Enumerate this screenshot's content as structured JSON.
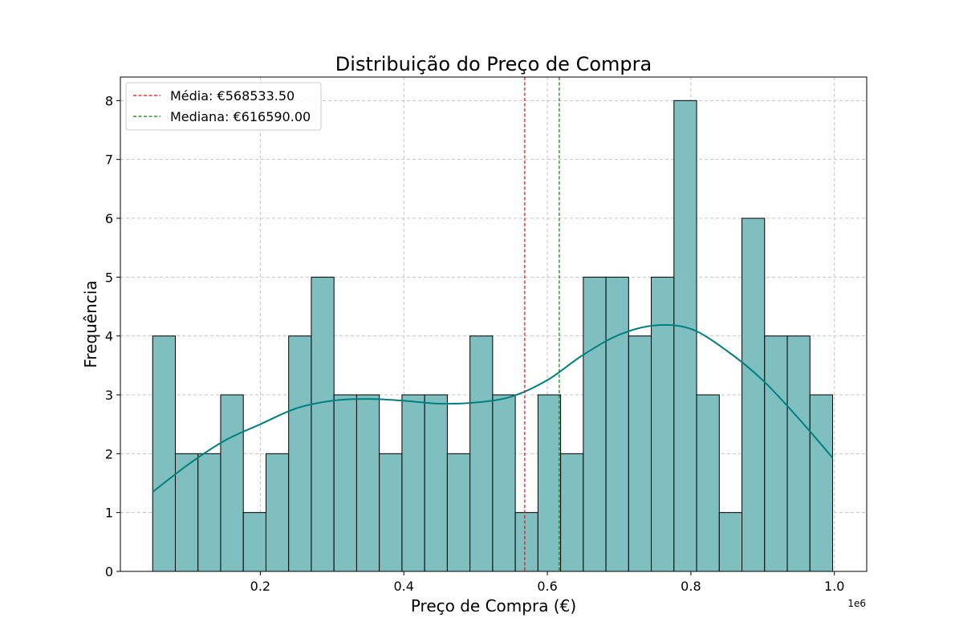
{
  "chart_data": {
    "type": "bar",
    "title": "Distribuição do Preço de Compra",
    "xlabel": "Preço de Compra (€)",
    "ylabel": "Frequência",
    "x_offset_label": "1e6",
    "xlim": [
      0.005,
      1.045
    ],
    "ylim": [
      0,
      8.4
    ],
    "x_ticks": [
      0.2,
      0.4,
      0.6,
      0.8,
      1.0
    ],
    "x_tick_labels": [
      "0.2",
      "0.4",
      "0.6",
      "0.8",
      "1.0"
    ],
    "y_ticks": [
      0,
      1,
      2,
      3,
      4,
      5,
      6,
      7,
      8
    ],
    "y_tick_labels": [
      "0",
      "1",
      "2",
      "3",
      "4",
      "5",
      "6",
      "7",
      "8"
    ],
    "grid": true,
    "legend_position": "top-left",
    "bins": {
      "start": 0.05,
      "end": 0.9975,
      "count": 30,
      "frequencies": [
        4,
        2,
        2,
        3,
        1,
        2,
        4,
        5,
        3,
        3,
        2,
        3,
        3,
        2,
        4,
        3,
        1,
        3,
        2,
        5,
        5,
        4,
        5,
        8,
        3,
        1,
        6,
        4,
        4,
        3
      ]
    },
    "kde": {
      "name": "",
      "x": [
        0.05,
        0.1,
        0.15,
        0.2,
        0.25,
        0.3,
        0.35,
        0.4,
        0.45,
        0.5,
        0.55,
        0.6,
        0.65,
        0.7,
        0.75,
        0.8,
        0.85,
        0.9,
        0.95,
        0.9975
      ],
      "y": [
        1.35,
        1.82,
        2.22,
        2.5,
        2.77,
        2.9,
        2.93,
        2.9,
        2.85,
        2.87,
        2.97,
        3.25,
        3.68,
        4.02,
        4.18,
        4.12,
        3.75,
        3.25,
        2.6,
        1.93
      ]
    },
    "mean": {
      "label": "Média: €568533.50",
      "value": 0.56853
    },
    "median": {
      "label": "Mediana: €616590.00",
      "value": 0.61659
    },
    "colors": {
      "bar_fill": "#80bfbf",
      "bar_edge": "#000000",
      "kde_line": "#008080",
      "mean_line": "#ff0000",
      "median_line": "#008000",
      "grid": "#c4c4c4"
    }
  }
}
